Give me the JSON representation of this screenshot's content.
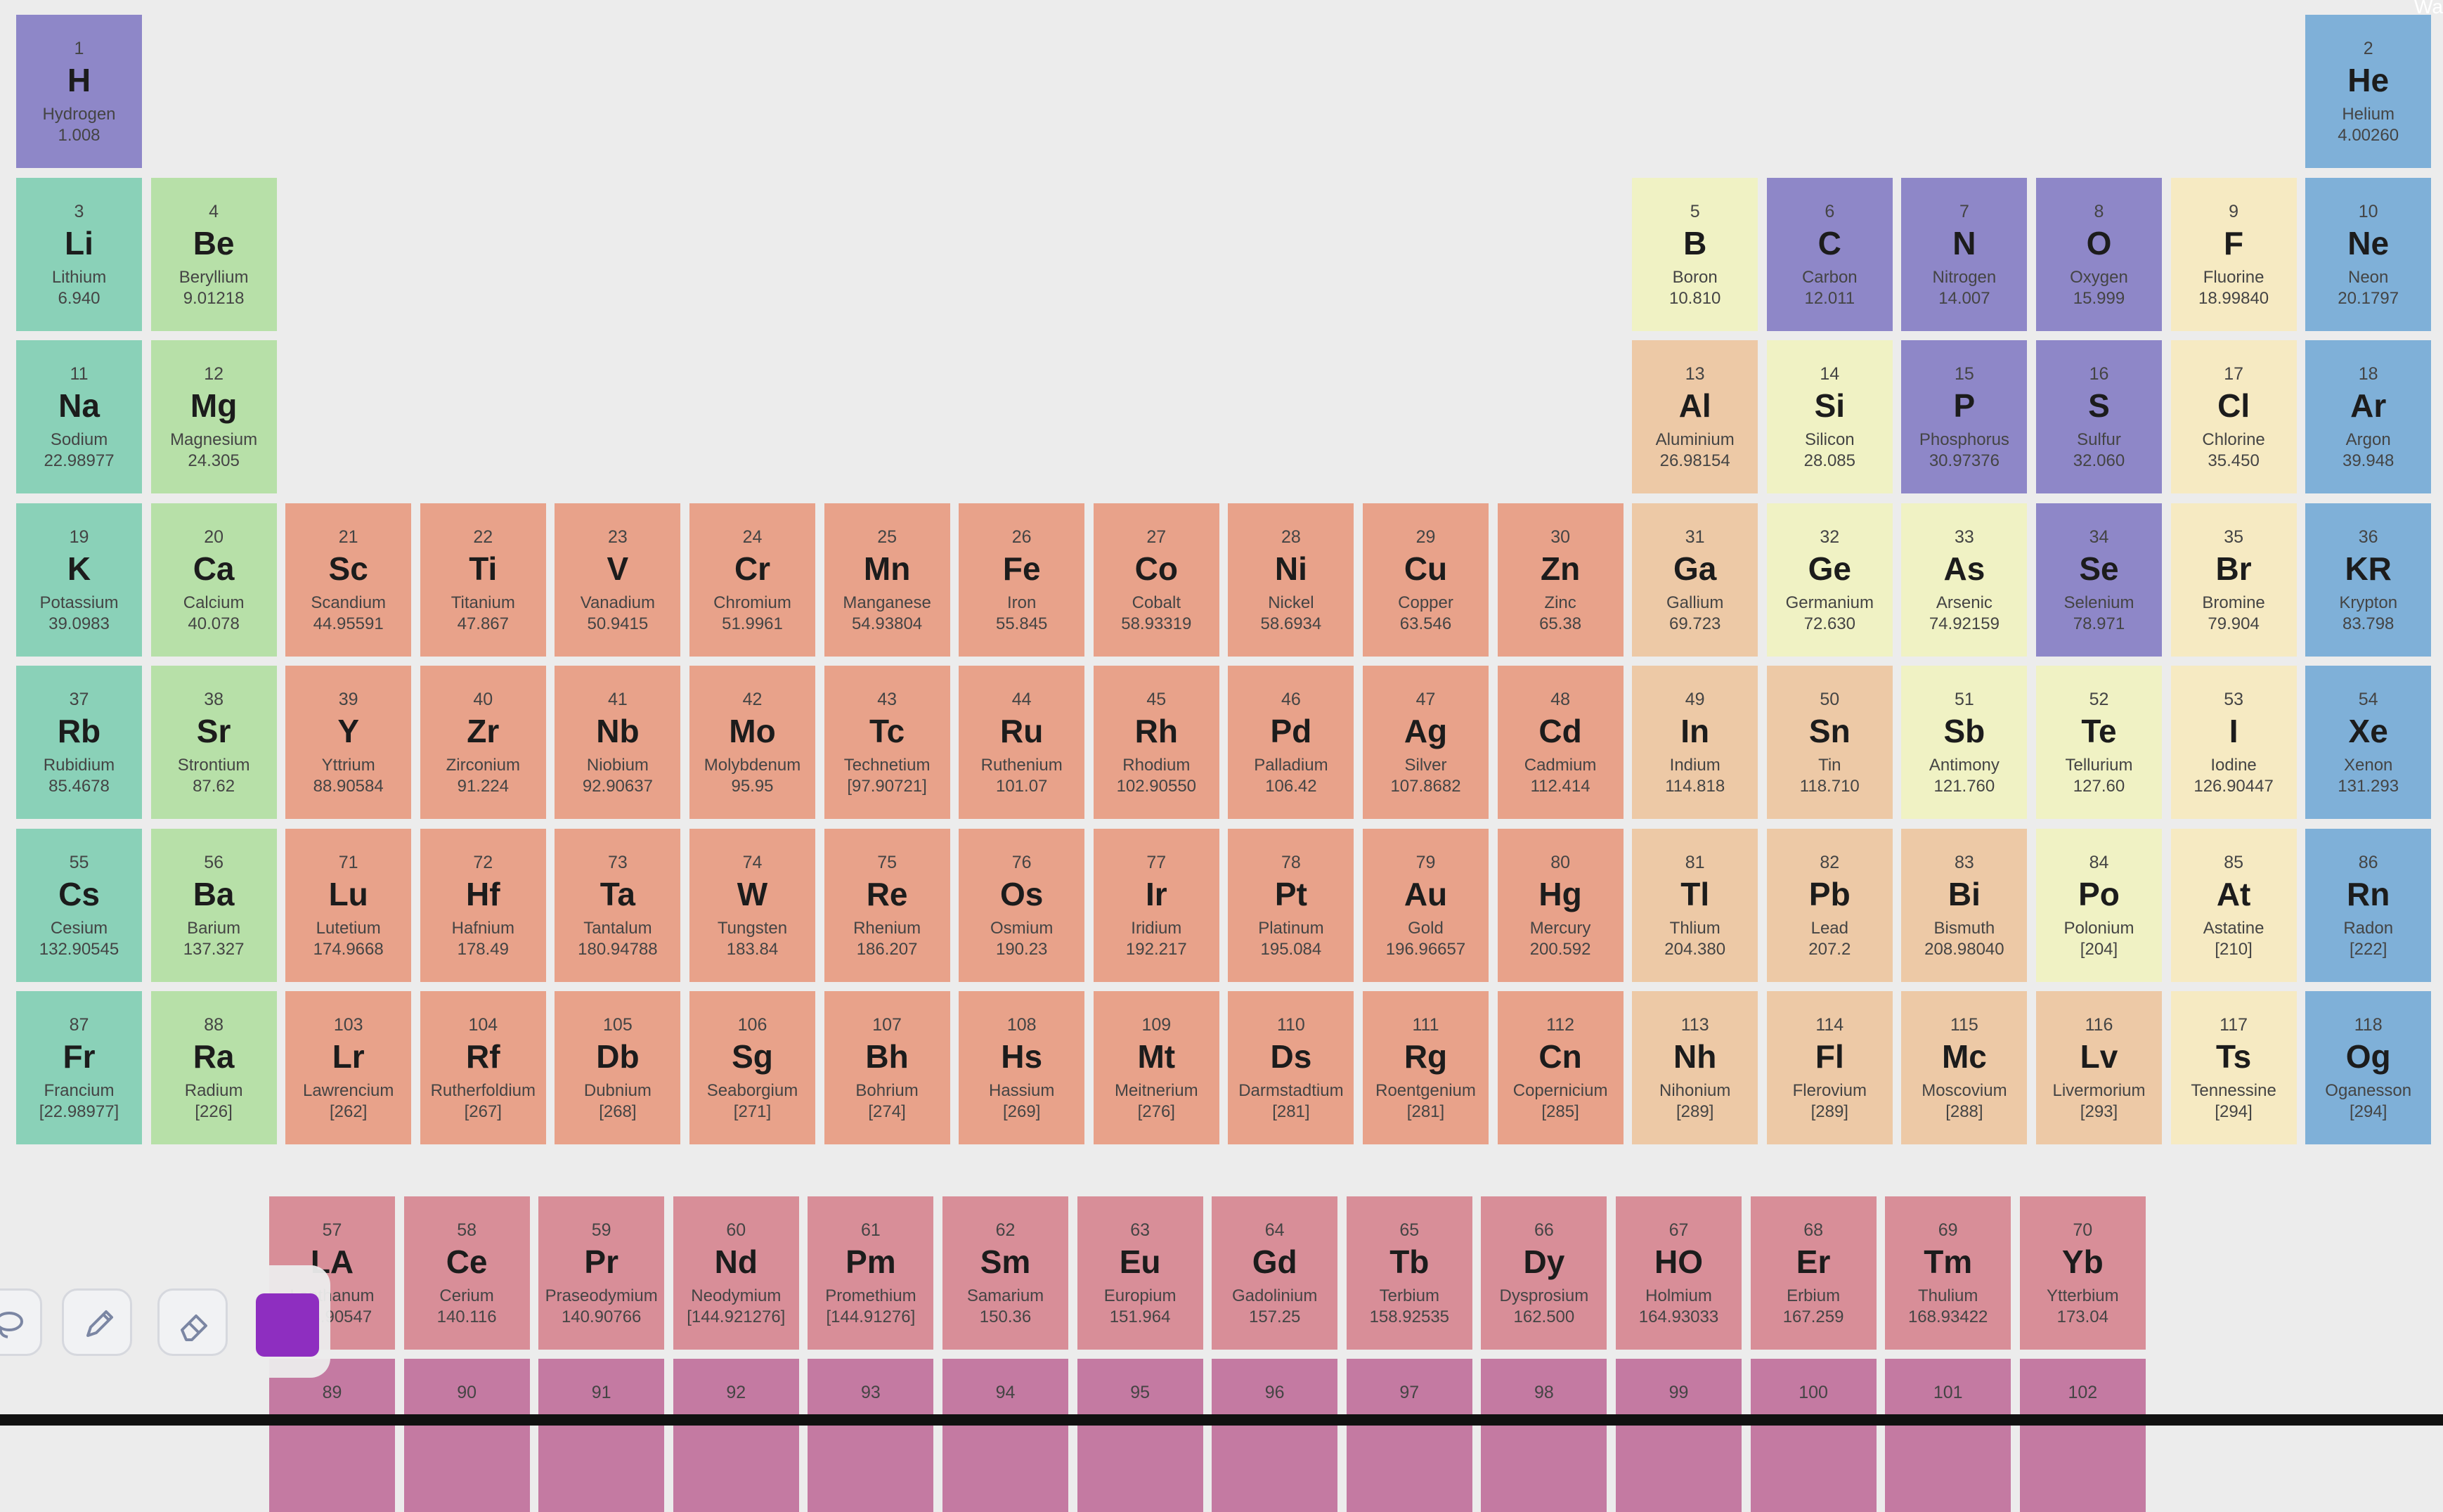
{
  "corner_text": "Wa",
  "colors": {
    "background": "#ececec",
    "category": {
      "nonmetal": "#8e87c8",
      "noble": "#7fb0d8",
      "alkali": "#8ad1b8",
      "alkaline": "#b7e0a8",
      "metalloid": "#f0f2c4",
      "halogen": "#f6eac2",
      "transition": "#e8a28a",
      "post": "#edc9a6",
      "lanthanide": "#d88e98",
      "actinide": "#c47aa2"
    },
    "selected_color": "#8e2ec0"
  },
  "elements": [
    {
      "n": "1",
      "s": "H",
      "name": "Hydrogen",
      "m": "1.008",
      "c": "nonmetal",
      "r": 1,
      "g": 1
    },
    {
      "n": "2",
      "s": "He",
      "name": "Helium",
      "m": "4.00260",
      "c": "noble",
      "r": 1,
      "g": 18
    },
    {
      "n": "3",
      "s": "Li",
      "name": "Lithium",
      "m": "6.940",
      "c": "alkali",
      "r": 2,
      "g": 1
    },
    {
      "n": "4",
      "s": "Be",
      "name": "Beryllium",
      "m": "9.01218",
      "c": "alkaline",
      "r": 2,
      "g": 2
    },
    {
      "n": "5",
      "s": "B",
      "name": "Boron",
      "m": "10.810",
      "c": "metalloid",
      "r": 2,
      "g": 13
    },
    {
      "n": "6",
      "s": "C",
      "name": "Carbon",
      "m": "12.011",
      "c": "nonmetal",
      "r": 2,
      "g": 14
    },
    {
      "n": "7",
      "s": "N",
      "name": "Nitrogen",
      "m": "14.007",
      "c": "nonmetal",
      "r": 2,
      "g": 15
    },
    {
      "n": "8",
      "s": "O",
      "name": "Oxygen",
      "m": "15.999",
      "c": "nonmetal",
      "r": 2,
      "g": 16
    },
    {
      "n": "9",
      "s": "F",
      "name": "Fluorine",
      "m": "18.99840",
      "c": "halogen",
      "r": 2,
      "g": 17
    },
    {
      "n": "10",
      "s": "Ne",
      "name": "Neon",
      "m": "20.1797",
      "c": "noble",
      "r": 2,
      "g": 18
    },
    {
      "n": "11",
      "s": "Na",
      "name": "Sodium",
      "m": "22.98977",
      "c": "alkali",
      "r": 3,
      "g": 1
    },
    {
      "n": "12",
      "s": "Mg",
      "name": "Magnesium",
      "m": "24.305",
      "c": "alkaline",
      "r": 3,
      "g": 2
    },
    {
      "n": "13",
      "s": "Al",
      "name": "Aluminium",
      "m": "26.98154",
      "c": "post",
      "r": 3,
      "g": 13
    },
    {
      "n": "14",
      "s": "Si",
      "name": "Silicon",
      "m": "28.085",
      "c": "metalloid",
      "r": 3,
      "g": 14
    },
    {
      "n": "15",
      "s": "P",
      "name": "Phosphorus",
      "m": "30.97376",
      "c": "nonmetal",
      "r": 3,
      "g": 15
    },
    {
      "n": "16",
      "s": "S",
      "name": "Sulfur",
      "m": "32.060",
      "c": "nonmetal",
      "r": 3,
      "g": 16
    },
    {
      "n": "17",
      "s": "Cl",
      "name": "Chlorine",
      "m": "35.450",
      "c": "halogen",
      "r": 3,
      "g": 17
    },
    {
      "n": "18",
      "s": "Ar",
      "name": "Argon",
      "m": "39.948",
      "c": "noble",
      "r": 3,
      "g": 18
    },
    {
      "n": "19",
      "s": "K",
      "name": "Potassium",
      "m": "39.0983",
      "c": "alkali",
      "r": 4,
      "g": 1
    },
    {
      "n": "20",
      "s": "Ca",
      "name": "Calcium",
      "m": "40.078",
      "c": "alkaline",
      "r": 4,
      "g": 2
    },
    {
      "n": "21",
      "s": "Sc",
      "name": "Scandium",
      "m": "44.95591",
      "c": "transition",
      "r": 4,
      "g": 3
    },
    {
      "n": "22",
      "s": "Ti",
      "name": "Titanium",
      "m": "47.867",
      "c": "transition",
      "r": 4,
      "g": 4
    },
    {
      "n": "23",
      "s": "V",
      "name": "Vanadium",
      "m": "50.9415",
      "c": "transition",
      "r": 4,
      "g": 5
    },
    {
      "n": "24",
      "s": "Cr",
      "name": "Chromium",
      "m": "51.9961",
      "c": "transition",
      "r": 4,
      "g": 6
    },
    {
      "n": "25",
      "s": "Mn",
      "name": "Manganese",
      "m": "54.93804",
      "c": "transition",
      "r": 4,
      "g": 7
    },
    {
      "n": "26",
      "s": "Fe",
      "name": "Iron",
      "m": "55.845",
      "c": "transition",
      "r": 4,
      "g": 8
    },
    {
      "n": "27",
      "s": "Co",
      "name": "Cobalt",
      "m": "58.93319",
      "c": "transition",
      "r": 4,
      "g": 9
    },
    {
      "n": "28",
      "s": "Ni",
      "name": "Nickel",
      "m": "58.6934",
      "c": "transition",
      "r": 4,
      "g": 10
    },
    {
      "n": "29",
      "s": "Cu",
      "name": "Copper",
      "m": "63.546",
      "c": "transition",
      "r": 4,
      "g": 11
    },
    {
      "n": "30",
      "s": "Zn",
      "name": "Zinc",
      "m": "65.38",
      "c": "transition",
      "r": 4,
      "g": 12
    },
    {
      "n": "31",
      "s": "Ga",
      "name": "Gallium",
      "m": "69.723",
      "c": "post",
      "r": 4,
      "g": 13
    },
    {
      "n": "32",
      "s": "Ge",
      "name": "Germanium",
      "m": "72.630",
      "c": "metalloid",
      "r": 4,
      "g": 14
    },
    {
      "n": "33",
      "s": "As",
      "name": "Arsenic",
      "m": "74.92159",
      "c": "metalloid",
      "r": 4,
      "g": 15
    },
    {
      "n": "34",
      "s": "Se",
      "name": "Selenium",
      "m": "78.971",
      "c": "nonmetal",
      "r": 4,
      "g": 16
    },
    {
      "n": "35",
      "s": "Br",
      "name": "Bromine",
      "m": "79.904",
      "c": "halogen",
      "r": 4,
      "g": 17
    },
    {
      "n": "36",
      "s": "KR",
      "name": "Krypton",
      "m": "83.798",
      "c": "noble",
      "r": 4,
      "g": 18
    },
    {
      "n": "37",
      "s": "Rb",
      "name": "Rubidium",
      "m": "85.4678",
      "c": "alkali",
      "r": 5,
      "g": 1
    },
    {
      "n": "38",
      "s": "Sr",
      "name": "Strontium",
      "m": "87.62",
      "c": "alkaline",
      "r": 5,
      "g": 2
    },
    {
      "n": "39",
      "s": "Y",
      "name": "Yttrium",
      "m": "88.90584",
      "c": "transition",
      "r": 5,
      "g": 3
    },
    {
      "n": "40",
      "s": "Zr",
      "name": "Zirconium",
      "m": "91.224",
      "c": "transition",
      "r": 5,
      "g": 4
    },
    {
      "n": "41",
      "s": "Nb",
      "name": "Niobium",
      "m": "92.90637",
      "c": "transition",
      "r": 5,
      "g": 5
    },
    {
      "n": "42",
      "s": "Mo",
      "name": "Molybdenum",
      "m": "95.95",
      "c": "transition",
      "r": 5,
      "g": 6
    },
    {
      "n": "43",
      "s": "Tc",
      "name": "Technetium",
      "m": "[97.90721]",
      "c": "transition",
      "r": 5,
      "g": 7
    },
    {
      "n": "44",
      "s": "Ru",
      "name": "Ruthenium",
      "m": "101.07",
      "c": "transition",
      "r": 5,
      "g": 8
    },
    {
      "n": "45",
      "s": "Rh",
      "name": "Rhodium",
      "m": "102.90550",
      "c": "transition",
      "r": 5,
      "g": 9
    },
    {
      "n": "46",
      "s": "Pd",
      "name": "Palladium",
      "m": "106.42",
      "c": "transition",
      "r": 5,
      "g": 10
    },
    {
      "n": "47",
      "s": "Ag",
      "name": "Silver",
      "m": "107.8682",
      "c": "transition",
      "r": 5,
      "g": 11
    },
    {
      "n": "48",
      "s": "Cd",
      "name": "Cadmium",
      "m": "112.414",
      "c": "transition",
      "r": 5,
      "g": 12
    },
    {
      "n": "49",
      "s": "In",
      "name": "Indium",
      "m": "114.818",
      "c": "post",
      "r": 5,
      "g": 13
    },
    {
      "n": "50",
      "s": "Sn",
      "name": "Tin",
      "m": "118.710",
      "c": "post",
      "r": 5,
      "g": 14
    },
    {
      "n": "51",
      "s": "Sb",
      "name": "Antimony",
      "m": "121.760",
      "c": "metalloid",
      "r": 5,
      "g": 15
    },
    {
      "n": "52",
      "s": "Te",
      "name": "Tellurium",
      "m": "127.60",
      "c": "metalloid",
      "r": 5,
      "g": 16
    },
    {
      "n": "53",
      "s": "I",
      "name": "Iodine",
      "m": "126.90447",
      "c": "halogen",
      "r": 5,
      "g": 17
    },
    {
      "n": "54",
      "s": "Xe",
      "name": "Xenon",
      "m": "131.293",
      "c": "noble",
      "r": 5,
      "g": 18
    },
    {
      "n": "55",
      "s": "Cs",
      "name": "Cesium",
      "m": "132.90545",
      "c": "alkali",
      "r": 6,
      "g": 1
    },
    {
      "n": "56",
      "s": "Ba",
      "name": "Barium",
      "m": "137.327",
      "c": "alkaline",
      "r": 6,
      "g": 2
    },
    {
      "n": "71",
      "s": "Lu",
      "name": "Lutetium",
      "m": "174.9668",
      "c": "transition",
      "r": 6,
      "g": 3
    },
    {
      "n": "72",
      "s": "Hf",
      "name": "Hafnium",
      "m": "178.49",
      "c": "transition",
      "r": 6,
      "g": 4
    },
    {
      "n": "73",
      "s": "Ta",
      "name": "Tantalum",
      "m": "180.94788",
      "c": "transition",
      "r": 6,
      "g": 5
    },
    {
      "n": "74",
      "s": "W",
      "name": "Tungsten",
      "m": "183.84",
      "c": "transition",
      "r": 6,
      "g": 6
    },
    {
      "n": "75",
      "s": "Re",
      "name": "Rhenium",
      "m": "186.207",
      "c": "transition",
      "r": 6,
      "g": 7
    },
    {
      "n": "76",
      "s": "Os",
      "name": "Osmium",
      "m": "190.23",
      "c": "transition",
      "r": 6,
      "g": 8
    },
    {
      "n": "77",
      "s": "Ir",
      "name": "Iridium",
      "m": "192.217",
      "c": "transition",
      "r": 6,
      "g": 9
    },
    {
      "n": "78",
      "s": "Pt",
      "name": "Platinum",
      "m": "195.084",
      "c": "transition",
      "r": 6,
      "g": 10
    },
    {
      "n": "79",
      "s": "Au",
      "name": "Gold",
      "m": "196.96657",
      "c": "transition",
      "r": 6,
      "g": 11
    },
    {
      "n": "80",
      "s": "Hg",
      "name": "Mercury",
      "m": "200.592",
      "c": "transition",
      "r": 6,
      "g": 12
    },
    {
      "n": "81",
      "s": "Tl",
      "name": "Thlium",
      "m": "204.380",
      "c": "post",
      "r": 6,
      "g": 13
    },
    {
      "n": "82",
      "s": "Pb",
      "name": "Lead",
      "m": "207.2",
      "c": "post",
      "r": 6,
      "g": 14
    },
    {
      "n": "83",
      "s": "Bi",
      "name": "Bismuth",
      "m": "208.98040",
      "c": "post",
      "r": 6,
      "g": 15
    },
    {
      "n": "84",
      "s": "Po",
      "name": "Polonium",
      "m": "[204]",
      "c": "metalloid",
      "r": 6,
      "g": 16
    },
    {
      "n": "85",
      "s": "At",
      "name": "Astatine",
      "m": "[210]",
      "c": "halogen",
      "r": 6,
      "g": 17
    },
    {
      "n": "86",
      "s": "Rn",
      "name": "Radon",
      "m": "[222]",
      "c": "noble",
      "r": 6,
      "g": 18
    },
    {
      "n": "87",
      "s": "Fr",
      "name": "Francium",
      "m": "[22.98977]",
      "c": "alkali",
      "r": 7,
      "g": 1
    },
    {
      "n": "88",
      "s": "Ra",
      "name": "Radium",
      "m": "[226]",
      "c": "alkaline",
      "r": 7,
      "g": 2
    },
    {
      "n": "103",
      "s": "Lr",
      "name": "Lawrencium",
      "m": "[262]",
      "c": "transition",
      "r": 7,
      "g": 3
    },
    {
      "n": "104",
      "s": "Rf",
      "name": "Rutherfoldium",
      "m": "[267]",
      "c": "transition",
      "r": 7,
      "g": 4
    },
    {
      "n": "105",
      "s": "Db",
      "name": "Dubnium",
      "m": "[268]",
      "c": "transition",
      "r": 7,
      "g": 5
    },
    {
      "n": "106",
      "s": "Sg",
      "name": "Seaborgium",
      "m": "[271]",
      "c": "transition",
      "r": 7,
      "g": 6
    },
    {
      "n": "107",
      "s": "Bh",
      "name": "Bohrium",
      "m": "[274]",
      "c": "transition",
      "r": 7,
      "g": 7
    },
    {
      "n": "108",
      "s": "Hs",
      "name": "Hassium",
      "m": "[269]",
      "c": "transition",
      "r": 7,
      "g": 8
    },
    {
      "n": "109",
      "s": "Mt",
      "name": "Meitnerium",
      "m": "[276]",
      "c": "transition",
      "r": 7,
      "g": 9
    },
    {
      "n": "110",
      "s": "Ds",
      "name": "Darmstadtium",
      "m": "[281]",
      "c": "transition",
      "r": 7,
      "g": 10
    },
    {
      "n": "111",
      "s": "Rg",
      "name": "Roentgenium",
      "m": "[281]",
      "c": "transition",
      "r": 7,
      "g": 11
    },
    {
      "n": "112",
      "s": "Cn",
      "name": "Copernicium",
      "m": "[285]",
      "c": "transition",
      "r": 7,
      "g": 12
    },
    {
      "n": "113",
      "s": "Nh",
      "name": "Nihonium",
      "m": "[289]",
      "c": "post",
      "r": 7,
      "g": 13
    },
    {
      "n": "114",
      "s": "Fl",
      "name": "Flerovium",
      "m": "[289]",
      "c": "post",
      "r": 7,
      "g": 14
    },
    {
      "n": "115",
      "s": "Mc",
      "name": "Moscovium",
      "m": "[288]",
      "c": "post",
      "r": 7,
      "g": 15
    },
    {
      "n": "116",
      "s": "Lv",
      "name": "Livermorium",
      "m": "[293]",
      "c": "post",
      "r": 7,
      "g": 16
    },
    {
      "n": "117",
      "s": "Ts",
      "name": "Tennessine",
      "m": "[294]",
      "c": "halogen",
      "r": 7,
      "g": 17
    },
    {
      "n": "118",
      "s": "Og",
      "name": "Oganesson",
      "m": "[294]",
      "c": "noble",
      "r": 7,
      "g": 18
    }
  ],
  "lanthanides": [
    {
      "n": "57",
      "s": "LA",
      "name": "Lanthanum",
      "m": "138.90547",
      "c": "lanthanide"
    },
    {
      "n": "58",
      "s": "Ce",
      "name": "Cerium",
      "m": "140.116",
      "c": "lanthanide"
    },
    {
      "n": "59",
      "s": "Pr",
      "name": "Praseodymium",
      "m": "140.90766",
      "c": "lanthanide"
    },
    {
      "n": "60",
      "s": "Nd",
      "name": "Neodymium",
      "m": "[144.921276]",
      "c": "lanthanide"
    },
    {
      "n": "61",
      "s": "Pm",
      "name": "Promethium",
      "m": "[144.91276]",
      "c": "lanthanide"
    },
    {
      "n": "62",
      "s": "Sm",
      "name": "Samarium",
      "m": "150.36",
      "c": "lanthanide"
    },
    {
      "n": "63",
      "s": "Eu",
      "name": "Europium",
      "m": "151.964",
      "c": "lanthanide"
    },
    {
      "n": "64",
      "s": "Gd",
      "name": "Gadolinium",
      "m": "157.25",
      "c": "lanthanide"
    },
    {
      "n": "65",
      "s": "Tb",
      "name": "Terbium",
      "m": "158.92535",
      "c": "lanthanide"
    },
    {
      "n": "66",
      "s": "Dy",
      "name": "Dysprosium",
      "m": "162.500",
      "c": "lanthanide"
    },
    {
      "n": "67",
      "s": "HO",
      "name": "Holmium",
      "m": "164.93033",
      "c": "lanthanide"
    },
    {
      "n": "68",
      "s": "Er",
      "name": "Erbium",
      "m": "167.259",
      "c": "lanthanide"
    },
    {
      "n": "69",
      "s": "Tm",
      "name": "Thulium",
      "m": "168.93422",
      "c": "lanthanide"
    },
    {
      "n": "70",
      "s": "Yb",
      "name": "Ytterbium",
      "m": "173.04",
      "c": "lanthanide"
    }
  ],
  "actinides": [
    {
      "n": "89",
      "c": "actinide"
    },
    {
      "n": "90",
      "c": "actinide"
    },
    {
      "n": "91",
      "c": "actinide"
    },
    {
      "n": "92",
      "c": "actinide"
    },
    {
      "n": "93",
      "c": "actinide"
    },
    {
      "n": "94",
      "c": "actinide"
    },
    {
      "n": "95",
      "c": "actinide"
    },
    {
      "n": "96",
      "c": "actinide"
    },
    {
      "n": "97",
      "c": "actinide"
    },
    {
      "n": "98",
      "c": "actinide"
    },
    {
      "n": "99",
      "c": "actinide"
    },
    {
      "n": "100",
      "c": "actinide"
    },
    {
      "n": "101",
      "c": "actinide"
    },
    {
      "n": "102",
      "c": "actinide"
    }
  ],
  "toolbar": {
    "tools": [
      {
        "icon": "lasso-icon",
        "name": "lasso-tool"
      },
      {
        "icon": "pencil-icon",
        "name": "pencil-tool"
      },
      {
        "icon": "eraser-icon",
        "name": "eraser-tool"
      }
    ]
  }
}
